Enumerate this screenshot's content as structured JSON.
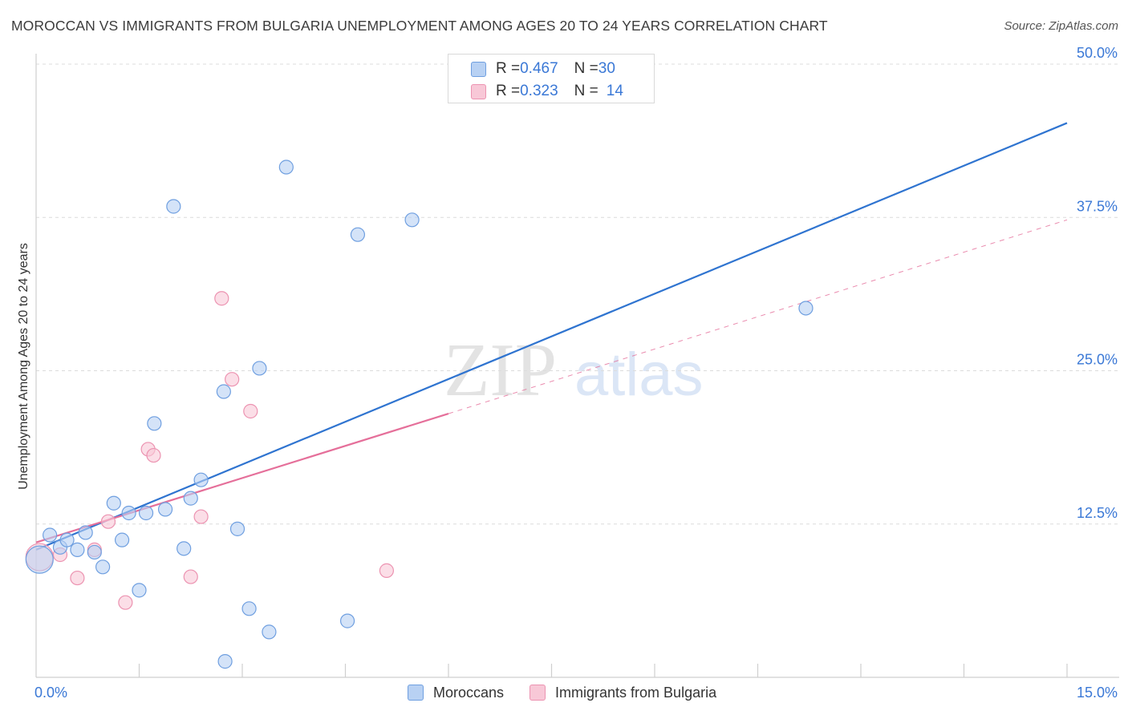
{
  "title": "MOROCCAN VS IMMIGRANTS FROM BULGARIA UNEMPLOYMENT AMONG AGES 20 TO 24 YEARS CORRELATION CHART",
  "source": "Source: ZipAtlas.com",
  "watermark": {
    "part1": "ZIP",
    "part2": "atlas"
  },
  "legend_top": [
    {
      "r_label": "R = ",
      "r_value": "0.467",
      "n_label": "N = ",
      "n_value": "30"
    },
    {
      "r_label": "R = ",
      "r_value": "0.323",
      "n_label": "N = ",
      "n_value": "14"
    }
  ],
  "legend_bottom": [
    "Moroccans",
    "Immigrants from Bulgaria"
  ],
  "colors": {
    "moroccans_fill": "#b8d1f3",
    "moroccans_stroke": "#6f9fe0",
    "moroccans_line": "#2f74d0",
    "bulgaria_fill": "#f8c8d7",
    "bulgaria_stroke": "#ec93b1",
    "bulgaria_line": "#e56f9a",
    "tick_label": "#3a78d6",
    "grid": "#dcdcdc"
  },
  "chart_data": {
    "type": "scatter",
    "title": "MOROCCAN VS IMMIGRANTS FROM BULGARIA UNEMPLOYMENT AMONG AGES 20 TO 24 YEARS CORRELATION CHART",
    "xlabel": "",
    "ylabel": "Unemployment Among Ages 20 to 24 years",
    "xlim": [
      0,
      15
    ],
    "ylim": [
      0,
      50
    ],
    "x_tick_labels": [
      "0.0%",
      "15.0%"
    ],
    "y_ticks": [
      12.5,
      25.0,
      37.5,
      50.0
    ],
    "y_tick_labels": [
      "12.5%",
      "25.0%",
      "37.5%",
      "50.0%"
    ],
    "series": [
      {
        "name": "Moroccans",
        "R": 0.467,
        "N": 30,
        "points": [
          {
            "x": 0.05,
            "y": 9.6,
            "big": true
          },
          {
            "x": 0.2,
            "y": 11.6
          },
          {
            "x": 0.35,
            "y": 10.6
          },
          {
            "x": 0.45,
            "y": 11.2
          },
          {
            "x": 0.6,
            "y": 10.4
          },
          {
            "x": 0.72,
            "y": 11.8
          },
          {
            "x": 0.85,
            "y": 10.2
          },
          {
            "x": 0.97,
            "y": 9.0
          },
          {
            "x": 1.13,
            "y": 14.2
          },
          {
            "x": 1.25,
            "y": 11.2
          },
          {
            "x": 1.35,
            "y": 13.4
          },
          {
            "x": 1.5,
            "y": 7.1
          },
          {
            "x": 1.6,
            "y": 13.4
          },
          {
            "x": 1.72,
            "y": 20.7
          },
          {
            "x": 1.88,
            "y": 13.7
          },
          {
            "x": 2.0,
            "y": 38.4
          },
          {
            "x": 2.15,
            "y": 10.5
          },
          {
            "x": 2.25,
            "y": 14.6
          },
          {
            "x": 2.4,
            "y": 16.1
          },
          {
            "x": 2.73,
            "y": 23.3
          },
          {
            "x": 2.75,
            "y": 1.3
          },
          {
            "x": 2.93,
            "y": 12.1
          },
          {
            "x": 3.1,
            "y": 5.6
          },
          {
            "x": 3.25,
            "y": 25.2
          },
          {
            "x": 3.39,
            "y": 3.7
          },
          {
            "x": 3.64,
            "y": 41.6
          },
          {
            "x": 4.53,
            "y": 4.6
          },
          {
            "x": 4.68,
            "y": 36.1
          },
          {
            "x": 5.47,
            "y": 37.3
          },
          {
            "x": 11.2,
            "y": 30.1
          }
        ],
        "trend": {
          "x0": 0.0,
          "y0": 10.4,
          "x1": 15.0,
          "y1": 45.2
        }
      },
      {
        "name": "Immigrants from Bulgaria",
        "R": 0.323,
        "N": 14,
        "points": [
          {
            "x": 0.05,
            "y": 9.8,
            "big": true
          },
          {
            "x": 0.35,
            "y": 10.0
          },
          {
            "x": 0.6,
            "y": 8.1
          },
          {
            "x": 0.85,
            "y": 10.4
          },
          {
            "x": 1.05,
            "y": 12.7
          },
          {
            "x": 1.3,
            "y": 6.1
          },
          {
            "x": 1.63,
            "y": 18.6
          },
          {
            "x": 1.71,
            "y": 18.1
          },
          {
            "x": 2.25,
            "y": 8.2
          },
          {
            "x": 2.4,
            "y": 13.1
          },
          {
            "x": 2.7,
            "y": 30.9
          },
          {
            "x": 2.85,
            "y": 24.3
          },
          {
            "x": 3.12,
            "y": 21.7
          },
          {
            "x": 5.1,
            "y": 8.7
          }
        ],
        "trend": {
          "x0": 0.0,
          "y0": 11.0,
          "x1": 6.0,
          "y1": 21.5
        },
        "trend_dashed_to": {
          "x": 15.0,
          "y": 37.3
        }
      }
    ]
  }
}
